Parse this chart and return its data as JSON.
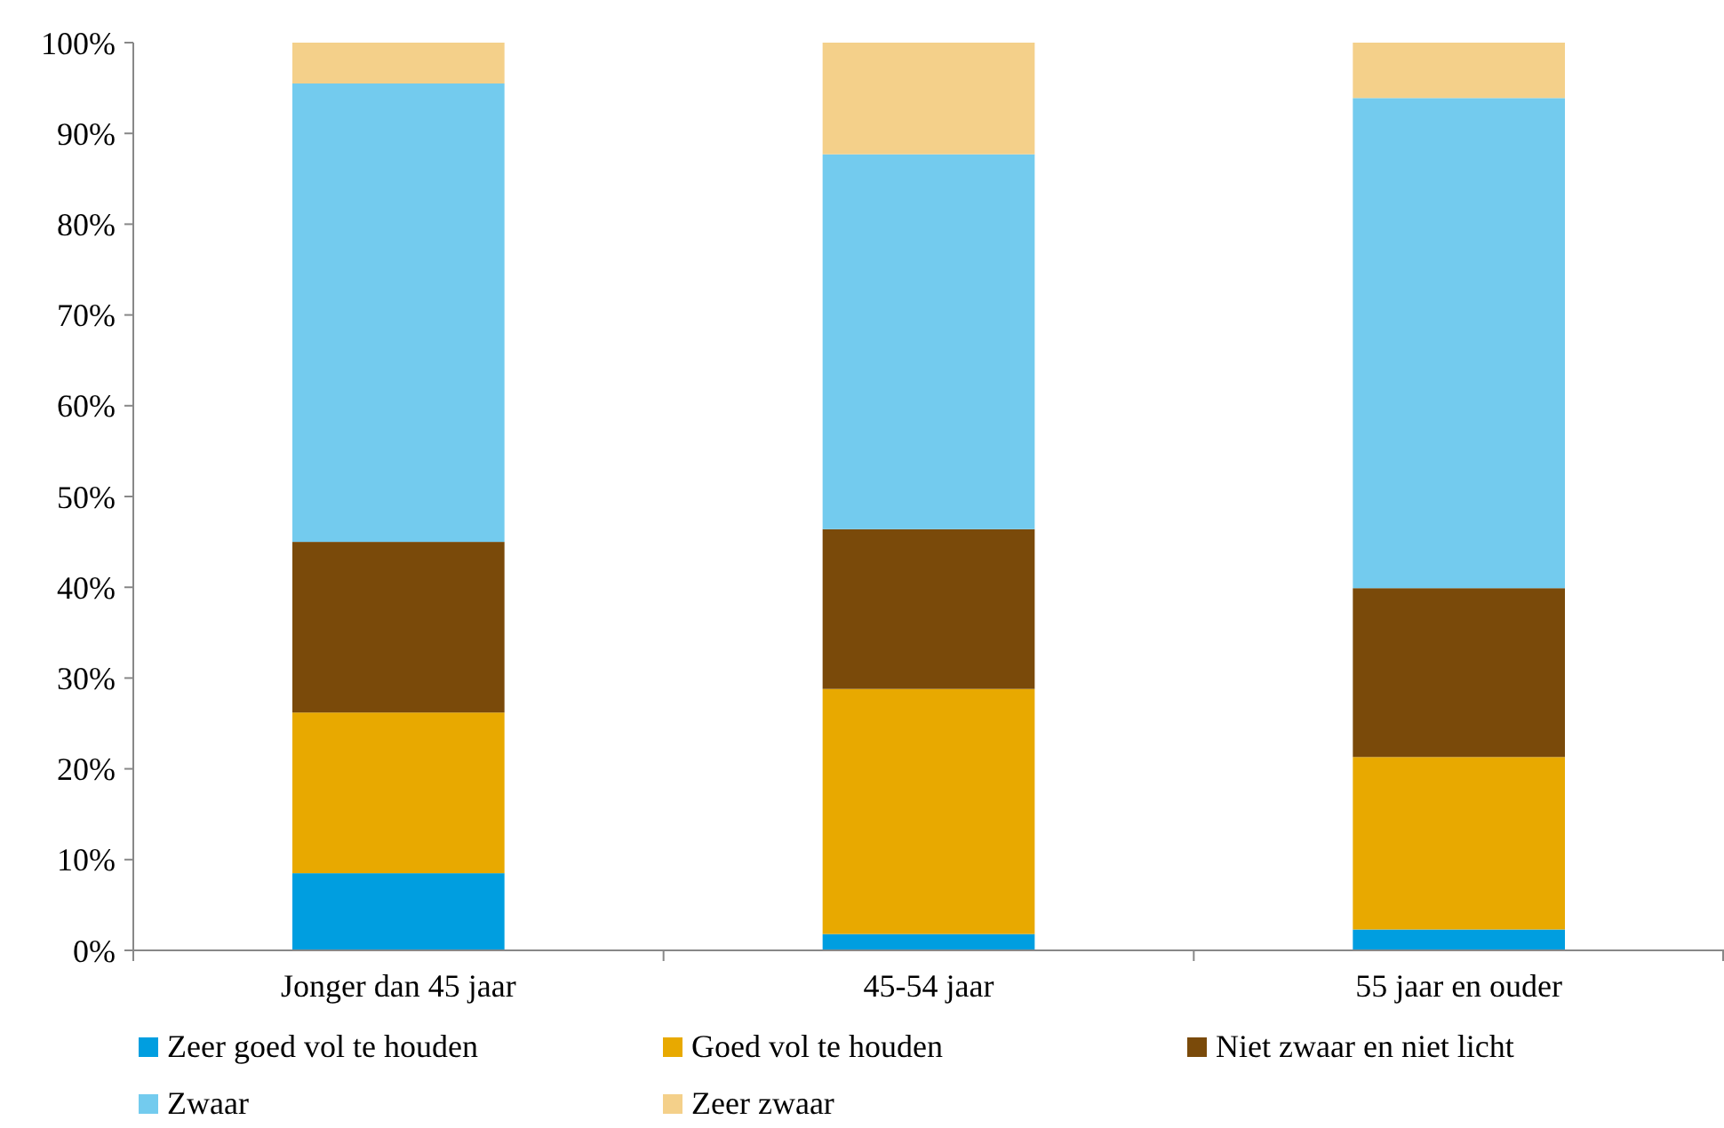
{
  "chart_data": {
    "type": "bar",
    "stacked": true,
    "categories": [
      "Jonger dan 45 jaar",
      "45-54 jaar",
      "55 jaar en ouder"
    ],
    "series": [
      {
        "name": "Zeer goed vol te houden",
        "color": "#009ee0",
        "values": [
          8.5,
          1.8,
          2.3
        ]
      },
      {
        "name": "Goed vol te houden",
        "color": "#e8a900",
        "values": [
          17.7,
          27.0,
          19.0
        ]
      },
      {
        "name": "Niet zwaar en niet licht",
        "color": "#7a4a0a",
        "values": [
          18.8,
          17.6,
          18.6
        ]
      },
      {
        "name": "Zwaar",
        "color": "#73cbee",
        "values": [
          50.5,
          41.3,
          54.0
        ]
      },
      {
        "name": "Zeer zwaar",
        "color": "#f4d08a",
        "values": [
          4.5,
          12.3,
          6.1
        ]
      }
    ],
    "ylim": [
      0,
      100
    ],
    "yticks": [
      {
        "value": 0,
        "label": "0%"
      },
      {
        "value": 10,
        "label": "10%"
      },
      {
        "value": 20,
        "label": "20%"
      },
      {
        "value": 30,
        "label": "30%"
      },
      {
        "value": 40,
        "label": "40%"
      },
      {
        "value": 50,
        "label": "50%"
      },
      {
        "value": 60,
        "label": "60%"
      },
      {
        "value": 70,
        "label": "70%"
      },
      {
        "value": 80,
        "label": "80%"
      },
      {
        "value": 90,
        "label": "90%"
      },
      {
        "value": 100,
        "label": "100%"
      }
    ],
    "grid": false,
    "legend": "bottom"
  }
}
